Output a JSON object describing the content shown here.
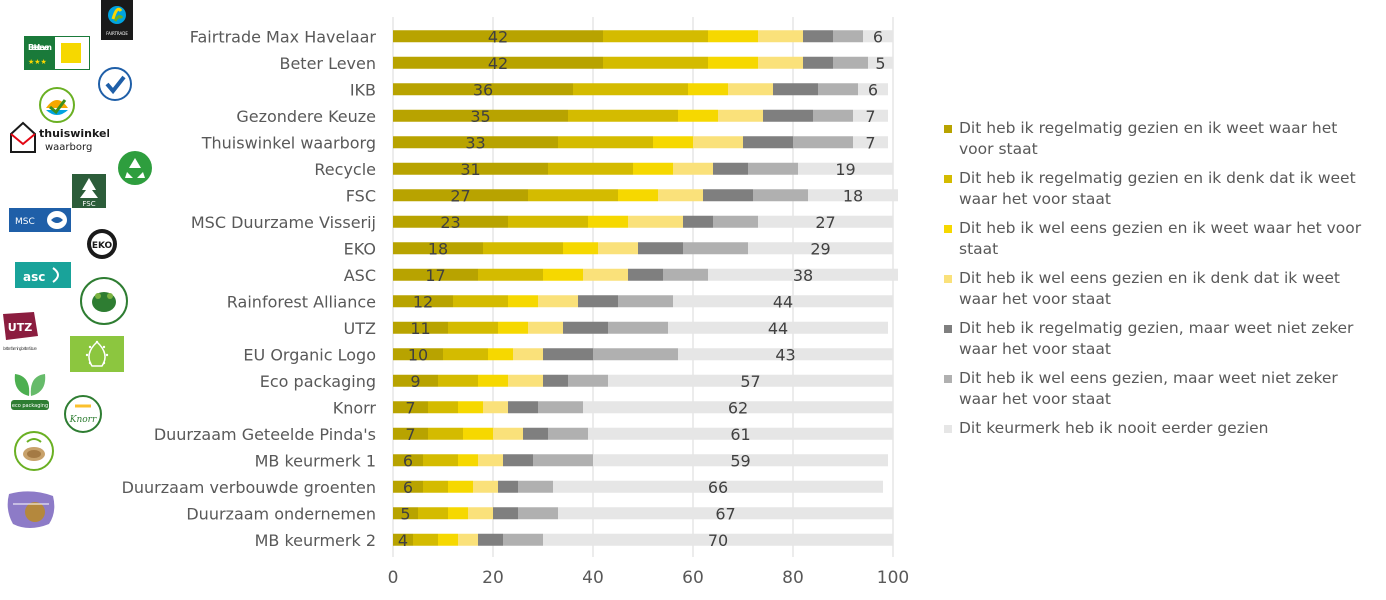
{
  "chart_data": {
    "type": "bar",
    "stacked": true,
    "orientation": "horizontal",
    "title": "",
    "xlabel": "",
    "ylabel": "",
    "xlim": [
      0,
      100
    ],
    "xticks": [
      0,
      20,
      40,
      60,
      80,
      100
    ],
    "grid": true,
    "legend_position": "right",
    "categories": [
      "Fairtrade Max Havelaar",
      "Beter Leven",
      "IKB",
      "Gezondere Keuze",
      "Thuiswinkel waarborg",
      "Recycle",
      "FSC",
      "MSC Duurzame Visserij",
      "EKO",
      "ASC",
      "Rainforest Alliance",
      "UTZ",
      "EU Organic Logo",
      "Eco packaging",
      "Knorr",
      "Duurzaam Geteelde Pinda's",
      "MB keurmerk 1",
      "Duurzaam verbouwde groenten",
      "Duurzaam ondernemen",
      "MB keurmerk 2"
    ],
    "series": [
      {
        "name": "Dit heb ik regelmatig gezien en ik weet waar het voor staat",
        "color": "#B8A300",
        "labeled": true,
        "values": [
          42,
          42,
          36,
          35,
          33,
          31,
          27,
          23,
          18,
          17,
          12,
          11,
          10,
          9,
          7,
          7,
          6,
          6,
          5,
          4
        ]
      },
      {
        "name": "Dit heb ik regelmatig gezien en ik denk dat ik weet waar het voor staat",
        "color": "#D4BB00",
        "labeled": false,
        "values": [
          21,
          21,
          23,
          22,
          19,
          17,
          18,
          16,
          16,
          13,
          11,
          10,
          9,
          8,
          6,
          7,
          7,
          5,
          6,
          5
        ]
      },
      {
        "name": "Dit heb ik wel eens gezien en ik weet waar het voor staat",
        "color": "#F6D800",
        "labeled": false,
        "values": [
          10,
          10,
          8,
          8,
          8,
          8,
          8,
          8,
          7,
          8,
          6,
          6,
          5,
          6,
          5,
          6,
          4,
          5,
          4,
          4
        ]
      },
      {
        "name": "Dit heb ik wel eens gezien en ik denk dat ik weet waar het voor staat",
        "color": "#FAE17A",
        "labeled": false,
        "values": [
          9,
          9,
          9,
          9,
          10,
          8,
          9,
          11,
          8,
          9,
          8,
          7,
          6,
          7,
          5,
          6,
          5,
          5,
          5,
          4
        ]
      },
      {
        "name": "Dit heb ik regelmatig gezien, maar weet niet zeker waar het voor staat",
        "color": "#7F7F7F",
        "labeled": false,
        "values": [
          6,
          6,
          9,
          10,
          10,
          7,
          10,
          6,
          9,
          7,
          8,
          9,
          10,
          5,
          6,
          5,
          6,
          4,
          5,
          5
        ]
      },
      {
        "name": "Dit heb ik wel eens gezien, maar weet niet zeker waar het voor staat",
        "color": "#B0B0B0",
        "labeled": false,
        "values": [
          6,
          7,
          8,
          8,
          12,
          10,
          11,
          9,
          13,
          9,
          11,
          12,
          17,
          8,
          9,
          8,
          12,
          7,
          8,
          8
        ]
      },
      {
        "name": "Dit keurmerk heb ik nooit eerder gezien",
        "color": "#E6E6E6",
        "labeled": true,
        "values": [
          6,
          5,
          6,
          7,
          7,
          19,
          18,
          27,
          29,
          38,
          44,
          44,
          43,
          57,
          62,
          61,
          59,
          66,
          67,
          70
        ]
      }
    ]
  },
  "logos": {
    "fairtrade": "FAIRTRADE",
    "beter_leven": "Beter Leven",
    "thuiswinkel": "thuiswinkel",
    "thuiswinkel_sub": "waarborg",
    "fsc": "FSC",
    "eko": "EKO",
    "asc": "asc",
    "utz": "UTZ",
    "utz_sub": "better farming better future",
    "eco_packaging": "eco packaging",
    "knorr": "Knorr",
    "msc": "MSC"
  },
  "colors": {
    "axis_text": "#595959",
    "grid": "#D9D9D9"
  }
}
